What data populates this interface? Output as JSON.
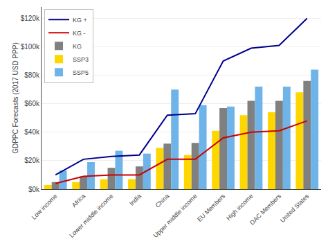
{
  "chart_data": {
    "type": "bar",
    "categories": [
      "Low income",
      "Africa",
      "Lower middle income",
      "India",
      "China",
      "Upper middle income",
      "EU Members",
      "High income",
      "DAC Members",
      "United States"
    ],
    "series": [
      {
        "name": "SSP3",
        "type": "bar",
        "color": "#FFD700",
        "values": [
          3000,
          5000,
          7000,
          7000,
          29000,
          24000,
          41000,
          52000,
          54000,
          68000
        ]
      },
      {
        "name": "KG",
        "type": "bar",
        "color": "#808080",
        "values": [
          5000,
          9000,
          15000,
          16000,
          32000,
          32500,
          57000,
          62000,
          62000,
          76000
        ]
      },
      {
        "name": "SSP5",
        "type": "bar",
        "color": "#6EB4E8",
        "values": [
          13000,
          19000,
          27000,
          25000,
          70000,
          59000,
          58000,
          72000,
          72000,
          84000
        ]
      },
      {
        "name": "KG +",
        "type": "line",
        "color": "#00008B",
        "values": [
          10000,
          21000,
          23000,
          24000,
          52000,
          53000,
          90000,
          99000,
          101000,
          120000
        ]
      },
      {
        "name": "KG -",
        "type": "line",
        "color": "#CC0000",
        "values": [
          4000,
          9000,
          10000,
          10000,
          21000,
          21000,
          36000,
          40000,
          41000,
          48000
        ]
      }
    ],
    "ylabel": "GDPPC Forecasts (2017 USD PPP)",
    "ylim": [
      0,
      128000
    ],
    "yticks": [
      {
        "value": 0,
        "label": "$0k"
      },
      {
        "value": 20000,
        "label": "$20k"
      },
      {
        "value": 40000,
        "label": "$40k"
      },
      {
        "value": 60000,
        "label": "$60k"
      },
      {
        "value": 80000,
        "label": "$80k"
      },
      {
        "value": 100000,
        "label": "$100k"
      },
      {
        "value": 120000,
        "label": "$120k"
      }
    ],
    "grid": true,
    "legend": "upper left"
  }
}
